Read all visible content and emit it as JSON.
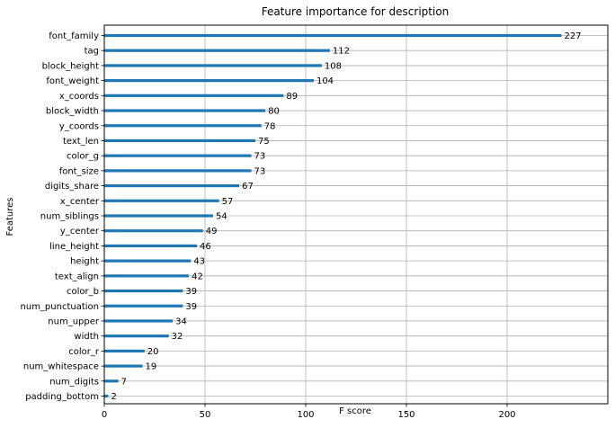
{
  "chart_data": {
    "type": "bar",
    "orientation": "horizontal",
    "title": "Feature importance for description",
    "xlabel": "F score",
    "ylabel": "Features",
    "xlim": [
      0,
      250
    ],
    "xticks": [
      0,
      50,
      100,
      150,
      200
    ],
    "grid": true,
    "bar_color": "#1f77b4",
    "categories": [
      "font_family",
      "tag",
      "block_height",
      "font_weight",
      "x_coords",
      "block_width",
      "y_coords",
      "text_len",
      "color_g",
      "font_size",
      "digits_share",
      "x_center",
      "num_siblings",
      "y_center",
      "line_height",
      "height",
      "text_align",
      "color_b",
      "num_punctuation",
      "num_upper",
      "width",
      "color_r",
      "num_whitespace",
      "num_digits",
      "padding_bottom"
    ],
    "values": [
      227,
      112,
      108,
      104,
      89,
      80,
      78,
      75,
      73,
      73,
      67,
      57,
      54,
      49,
      46,
      43,
      42,
      39,
      39,
      34,
      32,
      20,
      19,
      7,
      2
    ]
  }
}
